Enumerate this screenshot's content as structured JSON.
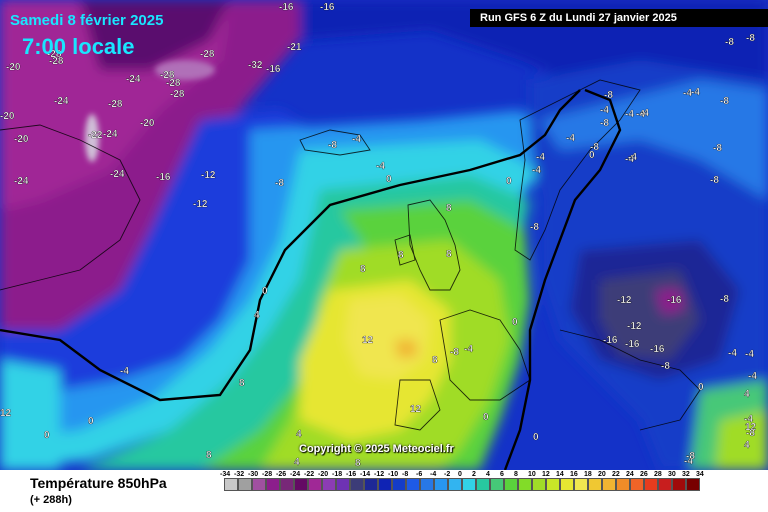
{
  "header": {
    "date": "Samedi 8 février 2025",
    "time": "7:00 locale",
    "run": "Run GFS 6 Z du Lundi 27 janvier 2025"
  },
  "copyright": "Copyright © 2025 Meteociel.fr",
  "footer": {
    "title": "Température 850hPa",
    "subtitle": "(+ 288h)"
  },
  "scale": {
    "labels": [
      "-34",
      "-32",
      "-30",
      "-28",
      "-26",
      "-24",
      "-22",
      "-20",
      "-18",
      "-16",
      "-14",
      "-12",
      "-10",
      "-8",
      "-6",
      "-4",
      "-2",
      "0",
      "2",
      "4",
      "6",
      "8",
      "10",
      "12",
      "14",
      "16",
      "18",
      "20",
      "22",
      "24",
      "26",
      "28",
      "30",
      "32",
      "34"
    ],
    "colors": [
      "#c8c8c8",
      "#a0a0a0",
      "#a050a0",
      "#8c1e8c",
      "#782878",
      "#640a64",
      "#a02896",
      "#8c3cb4",
      "#6e32b4",
      "#3c3c78",
      "#1e2896",
      "#0f23b4",
      "#143cc8",
      "#1e5ae6",
      "#2878e6",
      "#2896f0",
      "#32b4f0",
      "#32d2e6",
      "#28c8a0",
      "#46c878",
      "#5ad23c",
      "#82dc28",
      "#a0dc28",
      "#c8e628",
      "#e6e632",
      "#f0e650",
      "#f0c832",
      "#f0b432",
      "#f08c28",
      "#f06428",
      "#e63c1e",
      "#c81e1e",
      "#a00a0a",
      "#780000"
    ]
  },
  "map_labels": [
    {
      "text": "-16",
      "tone": "white"
    },
    {
      "text": "-16",
      "tone": "white"
    },
    {
      "text": "-20",
      "tone": "white"
    },
    {
      "text": "-28",
      "tone": "white"
    },
    {
      "text": "-28",
      "tone": "white"
    },
    {
      "text": "-28",
      "tone": "white"
    },
    {
      "text": "-21",
      "tone": "white"
    },
    {
      "text": "-28",
      "tone": "white"
    },
    {
      "text": "-32",
      "tone": "white"
    },
    {
      "text": "-16",
      "tone": "white"
    },
    {
      "text": "-24",
      "tone": "white"
    },
    {
      "text": "-28",
      "tone": "white"
    },
    {
      "text": "-28",
      "tone": "white"
    },
    {
      "text": "-28",
      "tone": "white"
    },
    {
      "text": "-24",
      "tone": "white"
    },
    {
      "text": "-22",
      "tone": "white"
    },
    {
      "text": "-24",
      "tone": "white"
    },
    {
      "text": "-20",
      "tone": "white"
    },
    {
      "text": "-20",
      "tone": "white"
    },
    {
      "text": "-24",
      "tone": "white"
    },
    {
      "text": "-16",
      "tone": "white"
    },
    {
      "text": "-12",
      "tone": "white"
    },
    {
      "text": "-12",
      "tone": "white"
    },
    {
      "text": "-24",
      "tone": "white"
    },
    {
      "text": "-20",
      "tone": "white"
    },
    {
      "text": "-8",
      "tone": "white"
    },
    {
      "text": "-4",
      "tone": "white"
    },
    {
      "text": "-8",
      "tone": "white"
    },
    {
      "text": "-4",
      "tone": "white"
    },
    {
      "text": "0",
      "tone": "white"
    },
    {
      "text": "-8",
      "tone": "white"
    },
    {
      "text": "-8",
      "tone": "white"
    },
    {
      "text": "-8",
      "tone": "white"
    },
    {
      "text": "-4",
      "tone": "white"
    },
    {
      "text": "-4",
      "tone": "white"
    },
    {
      "text": "-4",
      "tone": "white"
    },
    {
      "text": "-4",
      "tone": "white"
    },
    {
      "text": "-4",
      "tone": "white"
    },
    {
      "text": "-8",
      "tone": "white"
    },
    {
      "text": "0",
      "tone": "white"
    },
    {
      "text": "-4",
      "tone": "white"
    },
    {
      "text": "0",
      "tone": "white"
    },
    {
      "text": "-4",
      "tone": "white"
    },
    {
      "text": "-8",
      "tone": "white"
    },
    {
      "text": "-4",
      "tone": "white"
    },
    {
      "text": "-8",
      "tone": "white"
    },
    {
      "text": "8",
      "tone": "white"
    },
    {
      "text": "8",
      "tone": "white"
    },
    {
      "text": "8",
      "tone": "white"
    },
    {
      "text": "8",
      "tone": "white"
    },
    {
      "text": "0",
      "tone": "white"
    },
    {
      "text": "4",
      "tone": "white"
    },
    {
      "text": "12",
      "tone": "white"
    },
    {
      "text": "8",
      "tone": "white"
    },
    {
      "text": "-8",
      "tone": "white"
    },
    {
      "text": "-4",
      "tone": "white"
    },
    {
      "text": "-12",
      "tone": "white"
    },
    {
      "text": "-16",
      "tone": "white"
    },
    {
      "text": "-12",
      "tone": "white"
    },
    {
      "text": "-16",
      "tone": "white"
    },
    {
      "text": "-16",
      "tone": "white"
    },
    {
      "text": "-16",
      "tone": "white"
    },
    {
      "text": "-8",
      "tone": "white"
    },
    {
      "text": "-8",
      "tone": "white"
    },
    {
      "text": "-4",
      "tone": "white"
    },
    {
      "text": "-4",
      "tone": "white"
    },
    {
      "text": "0",
      "tone": "white"
    },
    {
      "text": "4",
      "tone": "white"
    },
    {
      "text": "12",
      "tone": "white"
    },
    {
      "text": "0",
      "tone": "white"
    },
    {
      "text": "0",
      "tone": "white"
    },
    {
      "text": "0",
      "tone": "white"
    },
    {
      "text": "4",
      "tone": "white"
    },
    {
      "text": "8",
      "tone": "white"
    },
    {
      "text": "8",
      "tone": "white"
    },
    {
      "text": "12",
      "tone": "white"
    },
    {
      "text": "-4",
      "tone": "white"
    },
    {
      "text": "8",
      "tone": "white"
    },
    {
      "text": "4",
      "tone": "white"
    },
    {
      "text": "12",
      "tone": "white"
    },
    {
      "text": "-4",
      "tone": "white"
    },
    {
      "text": "4",
      "tone": "white"
    },
    {
      "text": "-4",
      "tone": "white"
    },
    {
      "text": "-8",
      "tone": "white"
    },
    {
      "text": "-8",
      "tone": "white"
    },
    {
      "text": "-4",
      "tone": "white"
    },
    {
      "text": "-8",
      "tone": "white"
    },
    {
      "text": "-4",
      "tone": "white"
    },
    {
      "text": "-4",
      "tone": "white"
    },
    {
      "text": "-8",
      "tone": "white"
    },
    {
      "text": "-8",
      "tone": "white"
    },
    {
      "text": "-4",
      "tone": "white"
    },
    {
      "text": "0",
      "tone": "white"
    },
    {
      "text": "0",
      "tone": "white"
    }
  ]
}
